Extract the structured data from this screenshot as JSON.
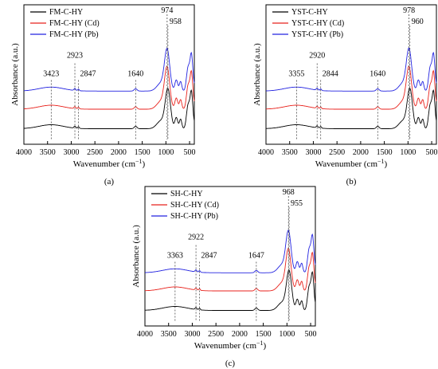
{
  "chart_data": [
    {
      "type": "line",
      "panel_label": "(a)",
      "xlabel": "Wavenumber (cm",
      "xlabel_sup": "−1",
      "xlabel_close": ")",
      "ylabel": "Absorbance (a.u.)",
      "x_reversed": true,
      "xlim": [
        4000,
        400
      ],
      "xticks": [
        4000,
        3500,
        3000,
        2500,
        2000,
        1500,
        1000,
        500
      ],
      "series": [
        {
          "name": "FM-C-HY",
          "color": "#000000"
        },
        {
          "name": "FM-C-HY (Cd)",
          "color": "#e8221c"
        },
        {
          "name": "FM-C-HY (Pb)",
          "color": "#2323e0"
        }
      ],
      "peaks": [
        {
          "x": 3423,
          "label": "3423"
        },
        {
          "x": 2923,
          "label": "2923"
        },
        {
          "x": 2847,
          "label": "2847"
        },
        {
          "x": 1640,
          "label": "1640"
        },
        {
          "x": 974,
          "label": "974"
        },
        {
          "x": 958,
          "label": "958"
        }
      ]
    },
    {
      "type": "line",
      "panel_label": "(b)",
      "xlabel": "Wavenumber (cm",
      "xlabel_sup": "−1",
      "xlabel_close": ")",
      "ylabel": "Absorbance (a.u.)",
      "x_reversed": true,
      "xlim": [
        4000,
        400
      ],
      "xticks": [
        4000,
        3500,
        3000,
        2500,
        2000,
        1500,
        1000,
        500
      ],
      "series": [
        {
          "name": "YST-C-HY",
          "color": "#000000"
        },
        {
          "name": "YST-C-HY (Cd)",
          "color": "#e8221c"
        },
        {
          "name": "YST-C-HY (Pb)",
          "color": "#2323e0"
        }
      ],
      "peaks": [
        {
          "x": 3355,
          "label": "3355"
        },
        {
          "x": 2920,
          "label": "2920"
        },
        {
          "x": 2844,
          "label": "2844"
        },
        {
          "x": 1640,
          "label": "1640"
        },
        {
          "x": 978,
          "label": "978"
        },
        {
          "x": 960,
          "label": "960"
        }
      ]
    },
    {
      "type": "line",
      "panel_label": "(c)",
      "xlabel": "Wavenumber (cm",
      "xlabel_sup": "−1",
      "xlabel_close": ")",
      "ylabel": "Absorbance (a.u.)",
      "x_reversed": true,
      "xlim": [
        4000,
        400
      ],
      "xticks": [
        4000,
        3500,
        3000,
        2500,
        2000,
        1500,
        1000,
        500
      ],
      "series": [
        {
          "name": "SH-C-HY",
          "color": "#000000"
        },
        {
          "name": "SH-C-HY (Cd)",
          "color": "#e8221c"
        },
        {
          "name": "SH-C-HY (Pb)",
          "color": "#2323e0"
        }
      ],
      "peaks": [
        {
          "x": 3363,
          "label": "3363"
        },
        {
          "x": 2922,
          "label": "2922"
        },
        {
          "x": 2847,
          "label": "2847"
        },
        {
          "x": 1647,
          "label": "1647"
        },
        {
          "x": 968,
          "label": "968"
        },
        {
          "x": 955,
          "label": "955"
        }
      ]
    }
  ]
}
